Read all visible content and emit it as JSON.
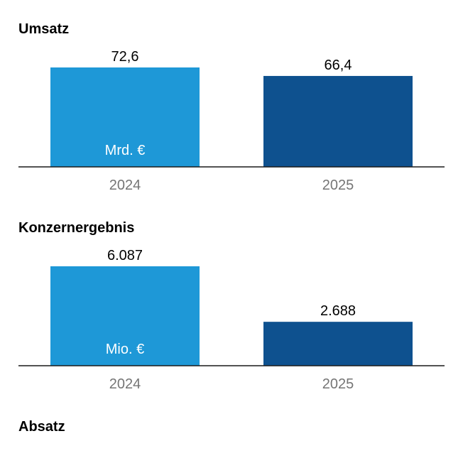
{
  "colors": {
    "year_2024": "#1e98d7",
    "year_2025": "#0e518f",
    "value_text": "#000000",
    "unit_text": "#ffffff",
    "year_text": "#757575",
    "baseline": "#1a1a1a"
  },
  "chart_data": [
    {
      "type": "bar",
      "title": "Umsatz",
      "unit": "Mrd. €",
      "categories": [
        "2024",
        "2025"
      ],
      "values": [
        72.6,
        66.4
      ],
      "value_labels": [
        "72,6",
        "66,4"
      ],
      "ylim": [
        0,
        72.6
      ],
      "grid": false,
      "legend": "none"
    },
    {
      "type": "bar",
      "title": "Konzernergebnis",
      "unit": "Mio. €",
      "categories": [
        "2024",
        "2025"
      ],
      "values": [
        6087,
        2688
      ],
      "value_labels": [
        "6.087",
        "2.688"
      ],
      "ylim": [
        0,
        6087
      ],
      "grid": false,
      "legend": "none"
    }
  ],
  "sections": [
    {
      "title": "Umsatz"
    },
    {
      "title": "Konzernergebnis"
    },
    {
      "title": "Absatz"
    }
  ]
}
